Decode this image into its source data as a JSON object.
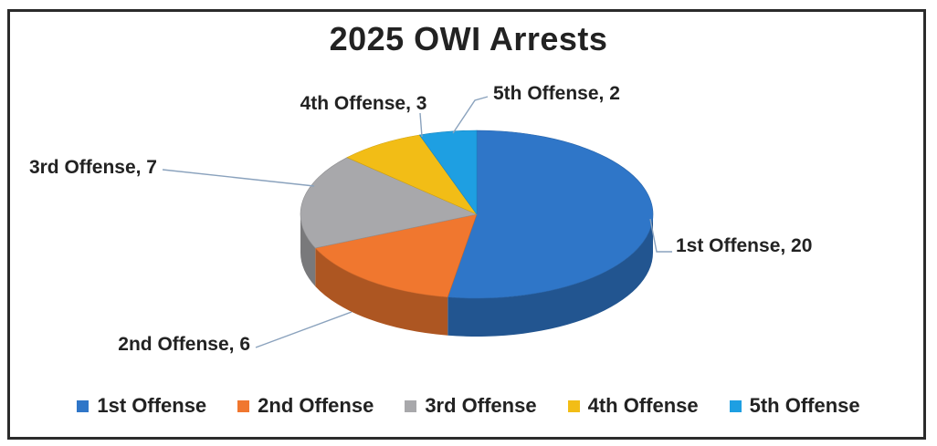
{
  "chart_data": {
    "type": "pie",
    "title": "2025 OWI Arrests",
    "categories": [
      "1st Offense",
      "2nd Offense",
      "3rd Offense",
      "4th Offense",
      "5th Offense"
    ],
    "values": [
      20,
      6,
      7,
      3,
      2
    ],
    "data_labels": [
      "1st Offense, 20",
      "2nd Offense, 6",
      "3rd Offense, 7",
      "4th Offense, 3",
      "5th Offense, 2"
    ],
    "colors": [
      "#2f76c8",
      "#f0772f",
      "#a8a8ab",
      "#f2bd16",
      "#1e9fe2"
    ],
    "style": "3d",
    "legend": "bottom"
  }
}
